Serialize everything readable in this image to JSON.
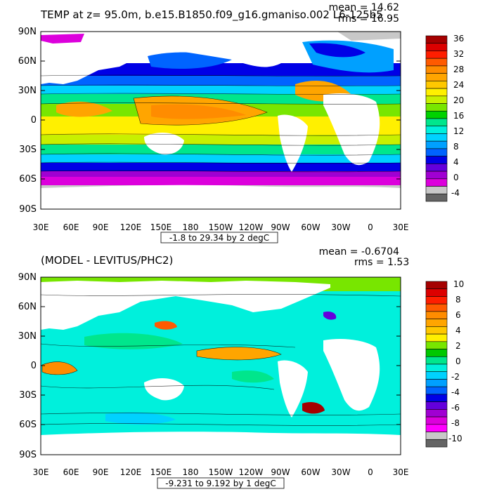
{
  "panels": [
    {
      "title": "TEMP at z=  95.0m, b.e15.B1850.f09_g16.gmaniso.002 L6-125b5",
      "mean_label": "mean = 14.62",
      "rms_label": "rms = 16.95",
      "range_label": "-1.8 to 29.34 by 2 degC",
      "colorbar_labels": [
        "36",
        "32",
        "28",
        "24",
        "20",
        "16",
        "12",
        "8",
        "4",
        "0",
        "-4"
      ],
      "colorbar_colors": [
        "#a50000",
        "#dc0000",
        "#ff1e00",
        "#ff5a00",
        "#ff8c00",
        "#ffa500",
        "#ffc800",
        "#fff000",
        "#c8f000",
        "#78e600",
        "#00d200",
        "#00e68c",
        "#00f0dc",
        "#00d2ff",
        "#00a0ff",
        "#0064ff",
        "#0000e6",
        "#6400dc",
        "#a000d2",
        "#dc00dc",
        "#c8c8c8",
        "#646464"
      ]
    },
    {
      "title": "(MODEL - LEVITUS/PHC2)",
      "mean_label": "mean = -0.6704",
      "rms_label": "rms = 1.53",
      "range_label": "-9.231 to 9.192 by 1 degC",
      "colorbar_labels": [
        "10",
        "8",
        "6",
        "4",
        "2",
        "0",
        "-2",
        "-4",
        "-6",
        "-8",
        "-10"
      ],
      "colorbar_colors": [
        "#a50000",
        "#dc0000",
        "#ff1e00",
        "#ff5a00",
        "#ff8c00",
        "#ffa500",
        "#ffc800",
        "#fff000",
        "#78e600",
        "#00c800",
        "#00e68c",
        "#00f0dc",
        "#00d2ff",
        "#00a0ff",
        "#0064ff",
        "#0000e6",
        "#6400dc",
        "#a000d2",
        "#dc00dc",
        "#ff00ff",
        "#c8c8c8",
        "#646464"
      ]
    }
  ],
  "lat_labels": [
    "90N",
    "60N",
    "30N",
    "0",
    "30S",
    "60S",
    "90S"
  ],
  "lon_labels": [
    "30E",
    "60E",
    "90E",
    "120E",
    "150E",
    "180",
    "150W",
    "120W",
    "90W",
    "60W",
    "30W",
    "0",
    "30E"
  ]
}
